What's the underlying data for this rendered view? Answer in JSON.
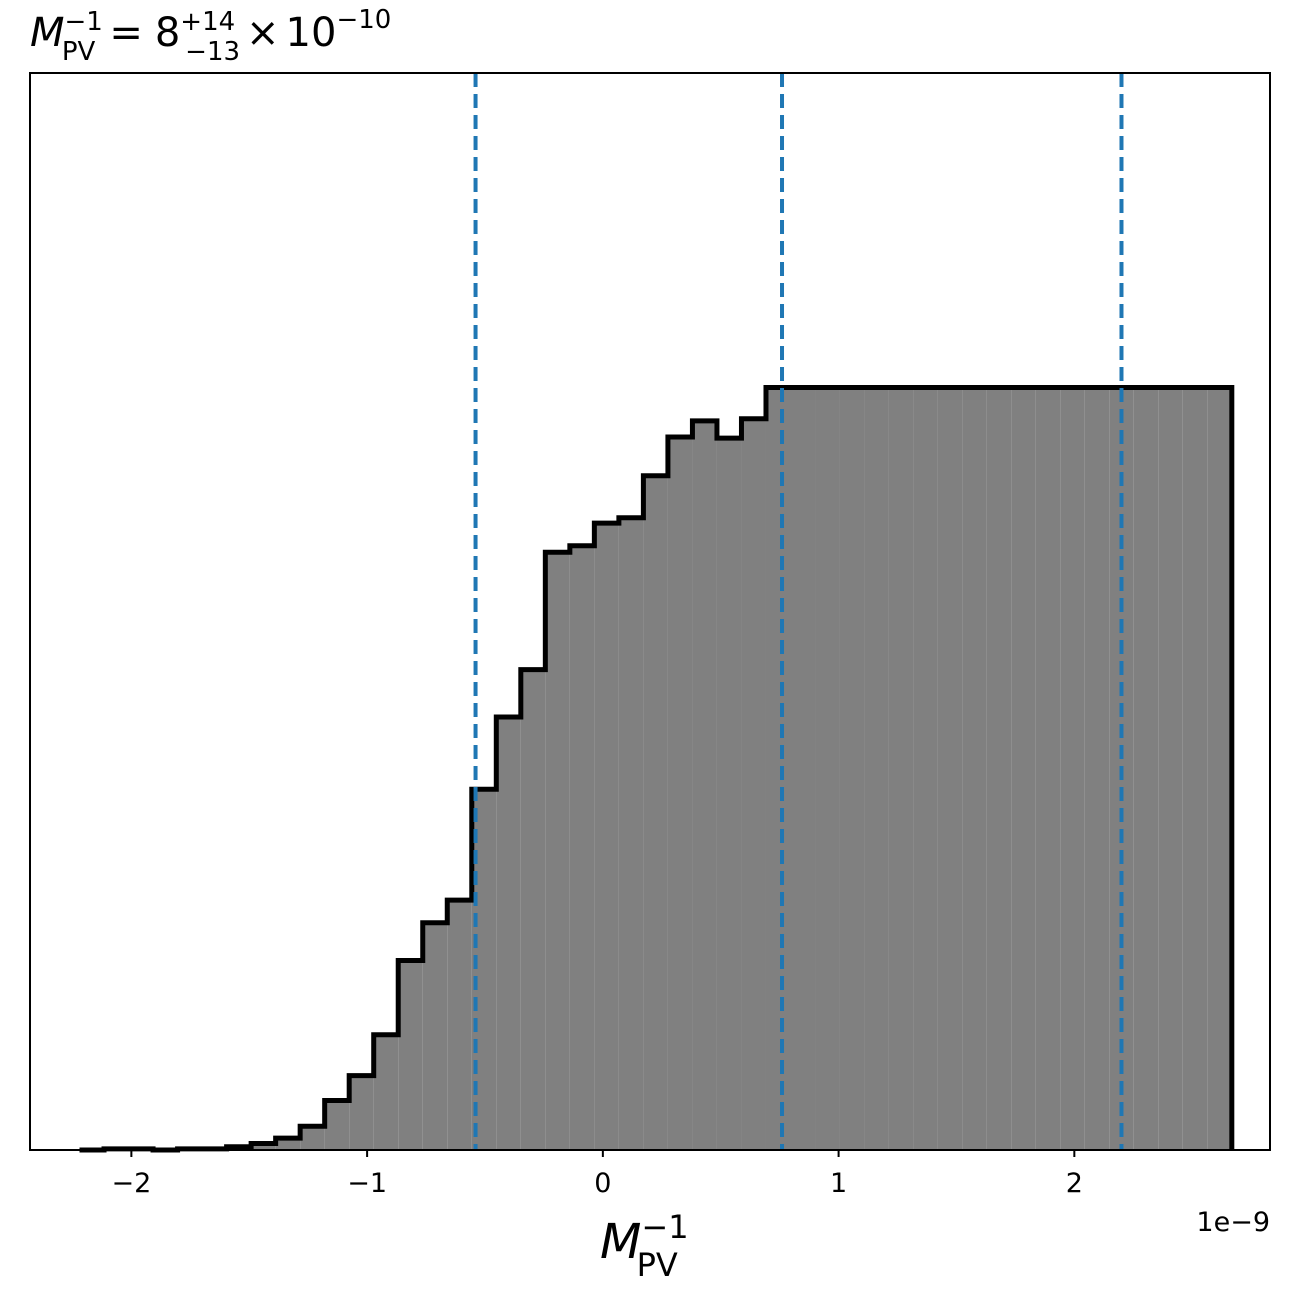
{
  "chart_data": {
    "type": "histogram",
    "title": {
      "var": "M",
      "sub": "PV",
      "sup": "−1",
      "eq": "=",
      "median": "8",
      "plus": "+14",
      "minus": "−13",
      "times": "×",
      "base": "10",
      "exp": "−10"
    },
    "xlabel": {
      "var": "M",
      "sub": "PV",
      "sup": "−1"
    },
    "x_offset_text": "1e−9",
    "xlim": [
      -2.43,
      2.83
    ],
    "ylim": [
      0,
      1.0
    ],
    "x_ticks": [
      {
        "value": -2,
        "label": "−2"
      },
      {
        "value": -1,
        "label": "−1"
      },
      {
        "value": 0,
        "label": "0"
      },
      {
        "value": 1,
        "label": "1"
      },
      {
        "value": 2,
        "label": "2"
      }
    ],
    "bin_start": -2.2,
    "bin_width": 0.104,
    "posterior_counts": [
      0,
      0,
      0,
      0,
      0,
      0,
      0,
      0,
      0,
      0,
      0,
      0,
      0,
      0,
      0,
      0,
      0,
      0,
      0,
      0,
      0,
      0,
      0,
      0,
      0,
      0,
      0,
      0,
      0,
      0,
      0,
      0,
      0,
      0,
      0,
      0,
      0,
      0,
      0,
      0,
      0,
      0,
      0,
      0,
      0,
      0,
      0
    ],
    "posterior": {
      "edges": [
        -2.22,
        -2.116,
        -2.012,
        -1.908,
        -1.804,
        -1.7,
        -1.596,
        -1.492,
        -1.388,
        -1.284,
        -1.18,
        -1.076,
        -0.972,
        -0.868,
        -0.764,
        -0.66,
        -0.556,
        -0.452,
        -0.348,
        -0.244,
        -0.14,
        -0.036,
        0.068,
        0.172,
        0.276,
        0.38,
        0.484,
        0.588,
        0.692,
        0.796,
        0.9,
        1.004,
        1.108,
        1.212,
        1.316,
        1.42,
        1.524,
        1.628,
        1.732,
        1.836,
        1.94,
        2.044,
        2.148,
        2.252,
        2.356,
        2.46,
        2.564,
        2.668
      ],
      "density": [
        0.0,
        0.001,
        0.001,
        0.0,
        0.001,
        0.001,
        0.003,
        0.006,
        0.011,
        0.022,
        0.046,
        0.069,
        0.107,
        0.176,
        0.211,
        0.232,
        0.335,
        0.402,
        0.446,
        0.555,
        0.561,
        0.582,
        0.587,
        0.626,
        0.662,
        0.677,
        0.661,
        0.679,
        0.708,
        0.708,
        0.708,
        0.708,
        0.708,
        0.708,
        0.708,
        0.708,
        0.708,
        0.708,
        0.708,
        0.708,
        0.708,
        0.708,
        0.708,
        0.708,
        0.708,
        0.708,
        0.708
      ]
    },
    "quantile_lines": [
      -0.54,
      0.76,
      2.2
    ],
    "colors": {
      "fill": "#808080",
      "edge": "#000000",
      "quantile": "#1f77b4",
      "prior": "#000000"
    }
  }
}
